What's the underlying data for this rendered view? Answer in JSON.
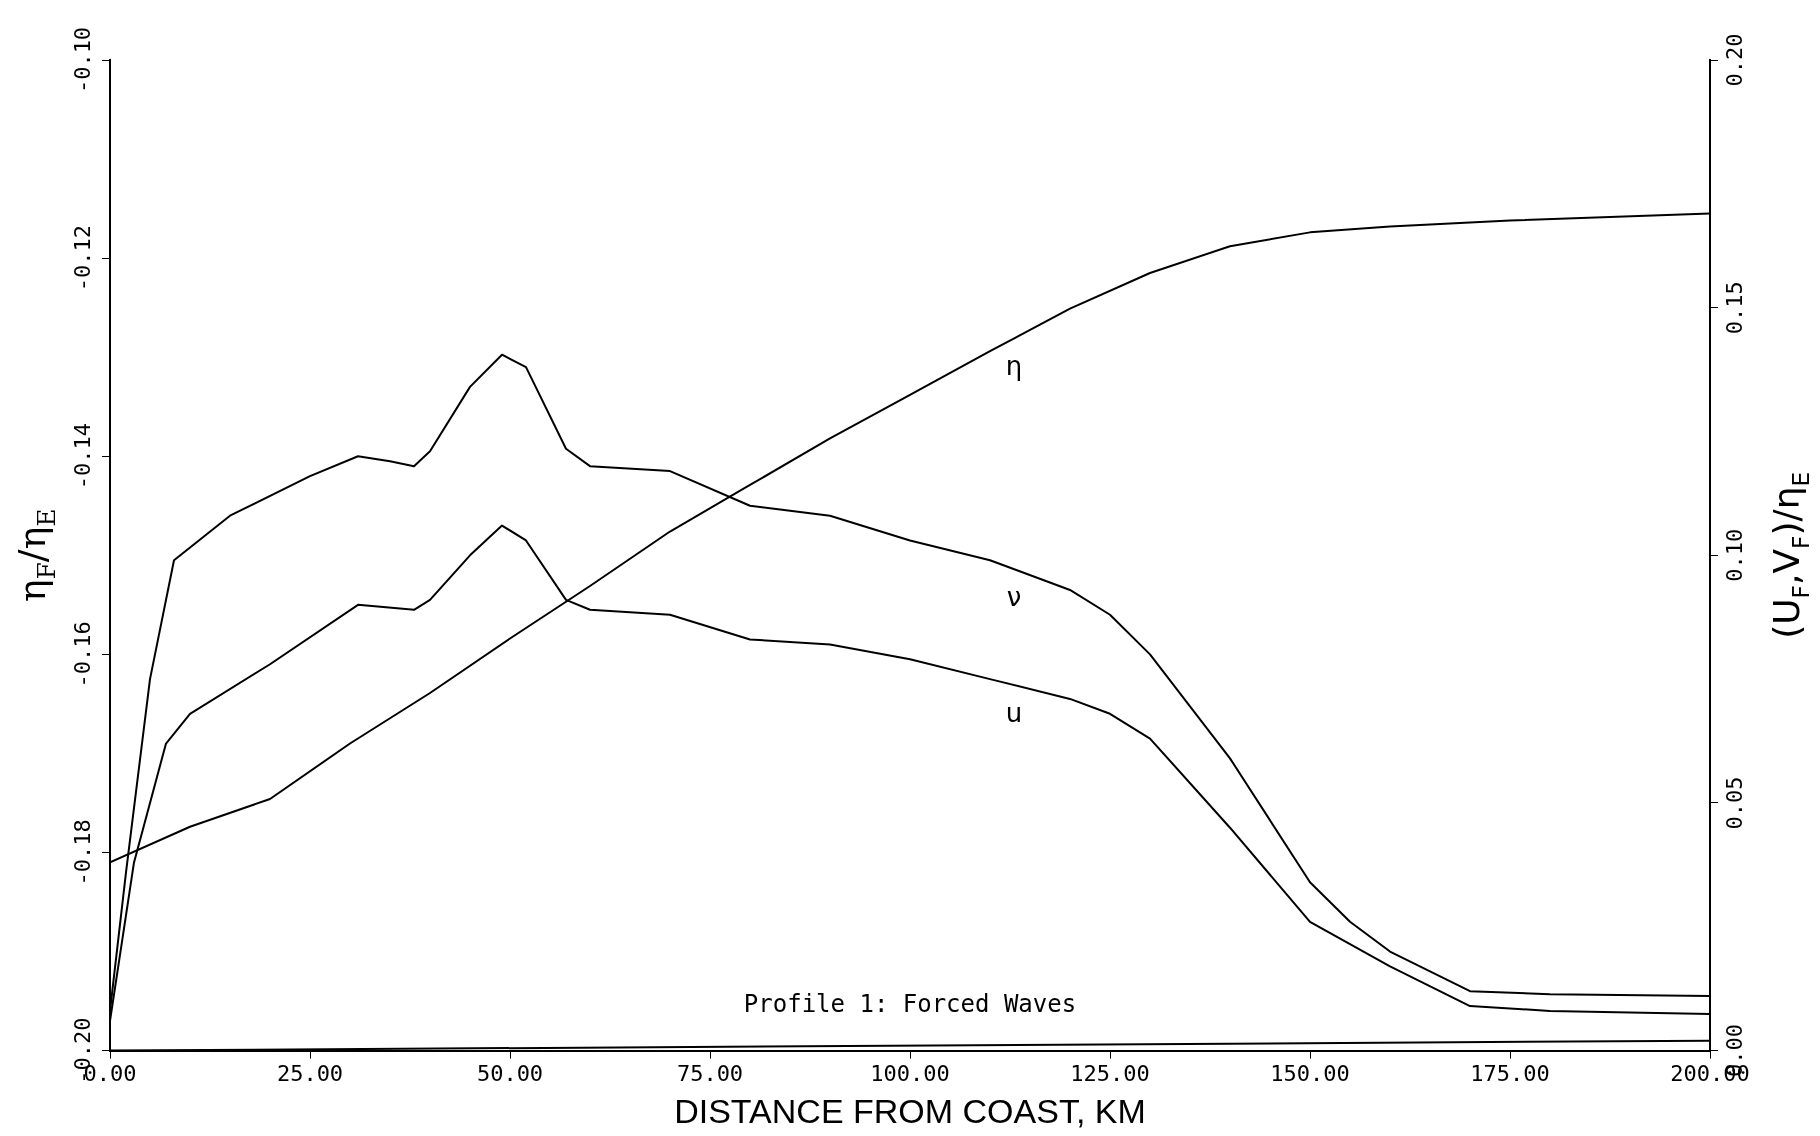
{
  "chart_data": {
    "type": "line",
    "xlabel": "DISTANCE FROM COAST, KM",
    "ylabel": "η$_{F}$/η$_{E}$",
    "y2label": "(U$_{F}$,V$_{F}$)/η$_{E}$",
    "xlim": [
      0,
      200
    ],
    "xticks": [
      {
        "value": 0,
        "label": "0.00"
      },
      {
        "value": 25,
        "label": "25.00"
      },
      {
        "value": 50,
        "label": "50.00"
      },
      {
        "value": 75,
        "label": "75.00"
      },
      {
        "value": 100,
        "label": "100.00"
      },
      {
        "value": 125,
        "label": "125.00"
      },
      {
        "value": 150,
        "label": "150.00"
      },
      {
        "value": 175,
        "label": "175.00"
      },
      {
        "value": 200,
        "label": "200.00"
      }
    ],
    "ylim": [
      -0.2,
      -0.1
    ],
    "yticks": [
      {
        "value": -0.2,
        "label": "-0.20"
      },
      {
        "value": -0.18,
        "label": "-0.18"
      },
      {
        "value": -0.16,
        "label": "-0.16"
      },
      {
        "value": -0.14,
        "label": "-0.14"
      },
      {
        "value": -0.12,
        "label": "-0.12"
      },
      {
        "value": -0.1,
        "label": "-0.10"
      }
    ],
    "y2lim": [
      0,
      0.2
    ],
    "y2ticks": [
      {
        "value": 0,
        "label": "0.00"
      },
      {
        "value": 0.05,
        "label": "0.05"
      },
      {
        "value": 0.1,
        "label": "0.10"
      },
      {
        "value": 0.15,
        "label": "0.15"
      },
      {
        "value": 0.2,
        "label": "0.20"
      }
    ],
    "grid": false,
    "legend": false,
    "marker": "none",
    "line_style": "solid",
    "series": [
      {
        "name": "η",
        "color": "#000000",
        "x": [
          0,
          10,
          20,
          30,
          40,
          50,
          60,
          70,
          80,
          90,
          100,
          110,
          120,
          130,
          140,
          150,
          160,
          175,
          200
        ],
        "values": [
          -0.181,
          -0.1774,
          -0.1746,
          -0.169,
          -0.1639,
          -0.1584,
          -0.1531,
          -0.1476,
          -0.1429,
          -0.1382,
          -0.1338,
          -0.1294,
          -0.1251,
          -0.1215,
          -0.1188,
          -0.1174,
          -0.1168,
          -0.1162,
          -0.1155
        ]
      },
      {
        "name": "ν",
        "color": "#000000",
        "axis": "y2",
        "x": [
          0,
          2,
          5,
          8,
          15,
          25,
          31,
          35,
          38,
          40,
          45,
          49,
          52,
          57,
          60,
          70,
          80,
          90,
          100,
          110,
          120,
          125,
          130,
          140,
          150,
          155,
          160,
          170,
          180,
          200
        ],
        "values": [
          0.008,
          0.036,
          0.075,
          0.099,
          0.108,
          0.116,
          0.12,
          0.119,
          0.118,
          0.121,
          0.134,
          0.1405,
          0.138,
          0.1215,
          0.118,
          0.117,
          0.11,
          0.108,
          0.103,
          0.099,
          0.093,
          0.088,
          0.08,
          0.059,
          0.034,
          0.026,
          0.02,
          0.012,
          0.0114,
          0.011
        ]
      },
      {
        "name": "u",
        "color": "#000000",
        "axis": "y2",
        "x": [
          0,
          3,
          7,
          10,
          20,
          31,
          38,
          40,
          45,
          49,
          52,
          57,
          60,
          70,
          80,
          90,
          100,
          110,
          120,
          125,
          130,
          140,
          150,
          160,
          170,
          180,
          200
        ],
        "values": [
          0.006,
          0.038,
          0.062,
          0.068,
          0.078,
          0.09,
          0.089,
          0.091,
          0.1,
          0.106,
          0.103,
          0.091,
          0.089,
          0.088,
          0.083,
          0.082,
          0.079,
          0.075,
          0.071,
          0.068,
          0.063,
          0.045,
          0.026,
          0.017,
          0.009,
          0.008,
          0.0074
        ]
      },
      {
        "color": "#000000",
        "axis": "y2",
        "x": [
          0,
          200
        ],
        "values": [
          0,
          0.002
        ]
      }
    ],
    "annotations": [
      "Profile 1: Forced Waves"
    ]
  }
}
